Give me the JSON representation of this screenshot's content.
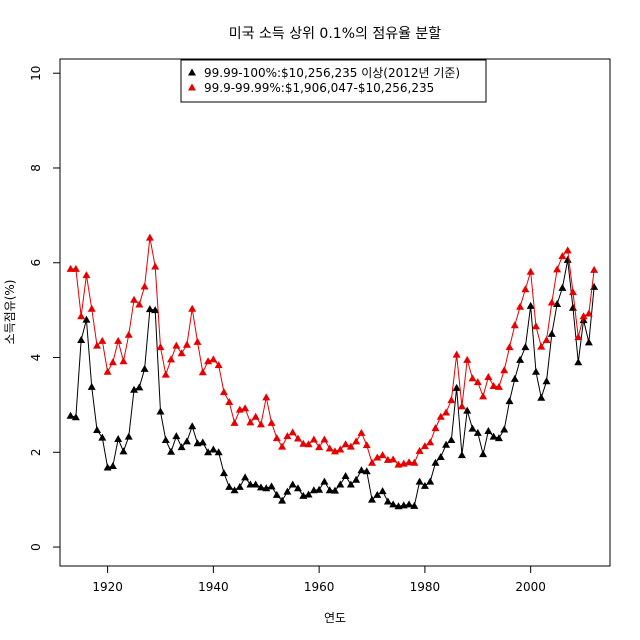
{
  "chart_data": {
    "type": "line",
    "title": "미국 소득 상위 0.1%의 점유율 분할",
    "xlabel": "연도",
    "ylabel": "소득점유(%)",
    "xlim": [
      1911,
      2015
    ],
    "ylim": [
      -0.4,
      10.3
    ],
    "xticks": [
      1920,
      1940,
      1960,
      1980,
      2000
    ],
    "yticks": [
      0,
      2,
      4,
      6,
      8,
      10
    ],
    "grid": false,
    "legend_position": "top-center",
    "x": [
      1913,
      1914,
      1915,
      1916,
      1917,
      1918,
      1919,
      1920,
      1921,
      1922,
      1923,
      1924,
      1925,
      1926,
      1927,
      1928,
      1929,
      1930,
      1931,
      1932,
      1933,
      1934,
      1935,
      1936,
      1937,
      1938,
      1939,
      1940,
      1941,
      1942,
      1943,
      1944,
      1945,
      1946,
      1947,
      1948,
      1949,
      1950,
      1951,
      1952,
      1953,
      1954,
      1955,
      1956,
      1957,
      1958,
      1959,
      1960,
      1961,
      1962,
      1963,
      1964,
      1965,
      1966,
      1967,
      1968,
      1969,
      1970,
      1971,
      1972,
      1973,
      1974,
      1975,
      1976,
      1977,
      1978,
      1979,
      1980,
      1981,
      1982,
      1983,
      1984,
      1985,
      1986,
      1987,
      1988,
      1989,
      1990,
      1991,
      1992,
      1993,
      1994,
      1995,
      1996,
      1997,
      1998,
      1999,
      2000,
      2001,
      2002,
      2003,
      2004,
      2005,
      2006,
      2007,
      2008,
      2009,
      2010,
      2011,
      2012
    ],
    "series": [
      {
        "name": "99.99-100%:$10,256,235 이상(2012년 기준)",
        "color": "#000000",
        "values": [
          2.77,
          2.74,
          4.37,
          4.8,
          3.38,
          2.47,
          2.31,
          1.68,
          1.71,
          2.28,
          2.02,
          2.33,
          3.32,
          3.37,
          3.76,
          5.02,
          5.0,
          2.86,
          2.26,
          2.01,
          2.34,
          2.11,
          2.23,
          2.55,
          2.19,
          2.21,
          2.0,
          2.06,
          2.0,
          1.56,
          1.27,
          1.2,
          1.27,
          1.47,
          1.32,
          1.32,
          1.26,
          1.24,
          1.28,
          1.1,
          0.98,
          1.17,
          1.32,
          1.24,
          1.08,
          1.11,
          1.2,
          1.21,
          1.38,
          1.2,
          1.19,
          1.32,
          1.5,
          1.32,
          1.42,
          1.62,
          1.6,
          1.0,
          1.1,
          1.18,
          0.96,
          0.9,
          0.86,
          0.88,
          0.9,
          0.87,
          1.38,
          1.29,
          1.38,
          1.78,
          1.9,
          2.16,
          2.26,
          3.36,
          1.94,
          2.88,
          2.5,
          2.41,
          1.96,
          2.45,
          2.33,
          2.3,
          2.48,
          3.08,
          3.55,
          3.95,
          4.22,
          5.09,
          3.7,
          3.15,
          3.5,
          4.5,
          5.13,
          5.47,
          6.06,
          5.05,
          3.9,
          4.79,
          4.32,
          5.49
        ]
      },
      {
        "name": "99.9-99.99%:$1,906,047-$10,256,235",
        "color": "#e60000",
        "values": [
          5.87,
          5.87,
          4.87,
          5.74,
          5.03,
          4.25,
          4.35,
          3.7,
          3.9,
          4.35,
          3.92,
          4.48,
          5.22,
          5.12,
          5.5,
          6.53,
          5.92,
          4.22,
          3.64,
          3.96,
          4.25,
          4.09,
          4.27,
          5.03,
          4.33,
          3.69,
          3.92,
          3.96,
          3.84,
          3.27,
          3.06,
          2.62,
          2.9,
          2.93,
          2.63,
          2.75,
          2.59,
          3.16,
          2.62,
          2.3,
          2.12,
          2.34,
          2.42,
          2.29,
          2.18,
          2.17,
          2.27,
          2.11,
          2.27,
          2.08,
          2.02,
          2.06,
          2.17,
          2.12,
          2.23,
          2.41,
          2.15,
          1.78,
          1.89,
          1.94,
          1.84,
          1.85,
          1.74,
          1.76,
          1.79,
          1.78,
          2.03,
          2.13,
          2.21,
          2.51,
          2.75,
          2.84,
          3.1,
          4.06,
          2.97,
          3.95,
          3.56,
          3.48,
          3.18,
          3.59,
          3.4,
          3.38,
          3.73,
          4.22,
          4.68,
          5.07,
          5.44,
          5.81,
          4.66,
          4.23,
          4.37,
          5.16,
          5.86,
          6.14,
          6.26,
          5.38,
          4.43,
          4.87,
          4.93,
          5.85
        ]
      }
    ]
  }
}
